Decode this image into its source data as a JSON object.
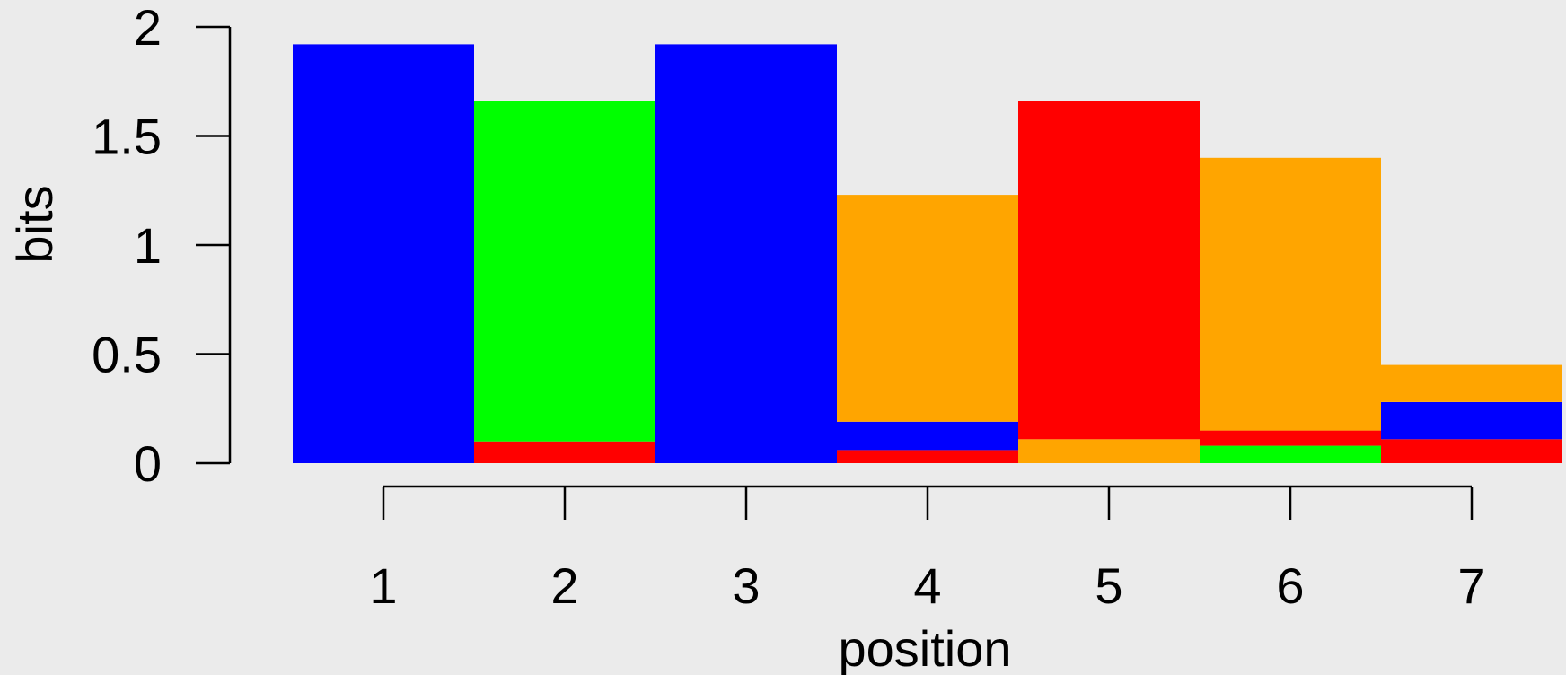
{
  "chart_data": {
    "type": "bar",
    "stacked": true,
    "description_words": "sequence logo style stacked bars",
    "xlabel": "position",
    "ylabel": "bits",
    "ylim": [
      0,
      2
    ],
    "yticks": [
      0,
      0.5,
      1,
      1.5,
      2
    ],
    "ytick_labels": [
      "0",
      "0.5",
      "1",
      "1.5",
      "2"
    ],
    "categories": [
      "1",
      "2",
      "3",
      "4",
      "5",
      "6",
      "7"
    ],
    "grid": false,
    "legend": "none",
    "colors": {
      "blue": "#0000ff",
      "green": "#00ff00",
      "red": "#ff0000",
      "orange": "#ffa500"
    },
    "stacks": [
      [
        {
          "color": "blue",
          "value": 1.92
        }
      ],
      [
        {
          "color": "red",
          "value": 0.1
        },
        {
          "color": "green",
          "value": 1.56
        }
      ],
      [
        {
          "color": "blue",
          "value": 1.92
        }
      ],
      [
        {
          "color": "red",
          "value": 0.06
        },
        {
          "color": "blue",
          "value": 0.13
        },
        {
          "color": "orange",
          "value": 1.04
        }
      ],
      [
        {
          "color": "orange",
          "value": 0.11
        },
        {
          "color": "red",
          "value": 1.55
        }
      ],
      [
        {
          "color": "green",
          "value": 0.08
        },
        {
          "color": "red",
          "value": 0.07
        },
        {
          "color": "orange",
          "value": 1.25
        }
      ],
      [
        {
          "color": "red",
          "value": 0.11
        },
        {
          "color": "blue",
          "value": 0.17
        },
        {
          "color": "orange",
          "value": 0.17
        }
      ]
    ]
  }
}
